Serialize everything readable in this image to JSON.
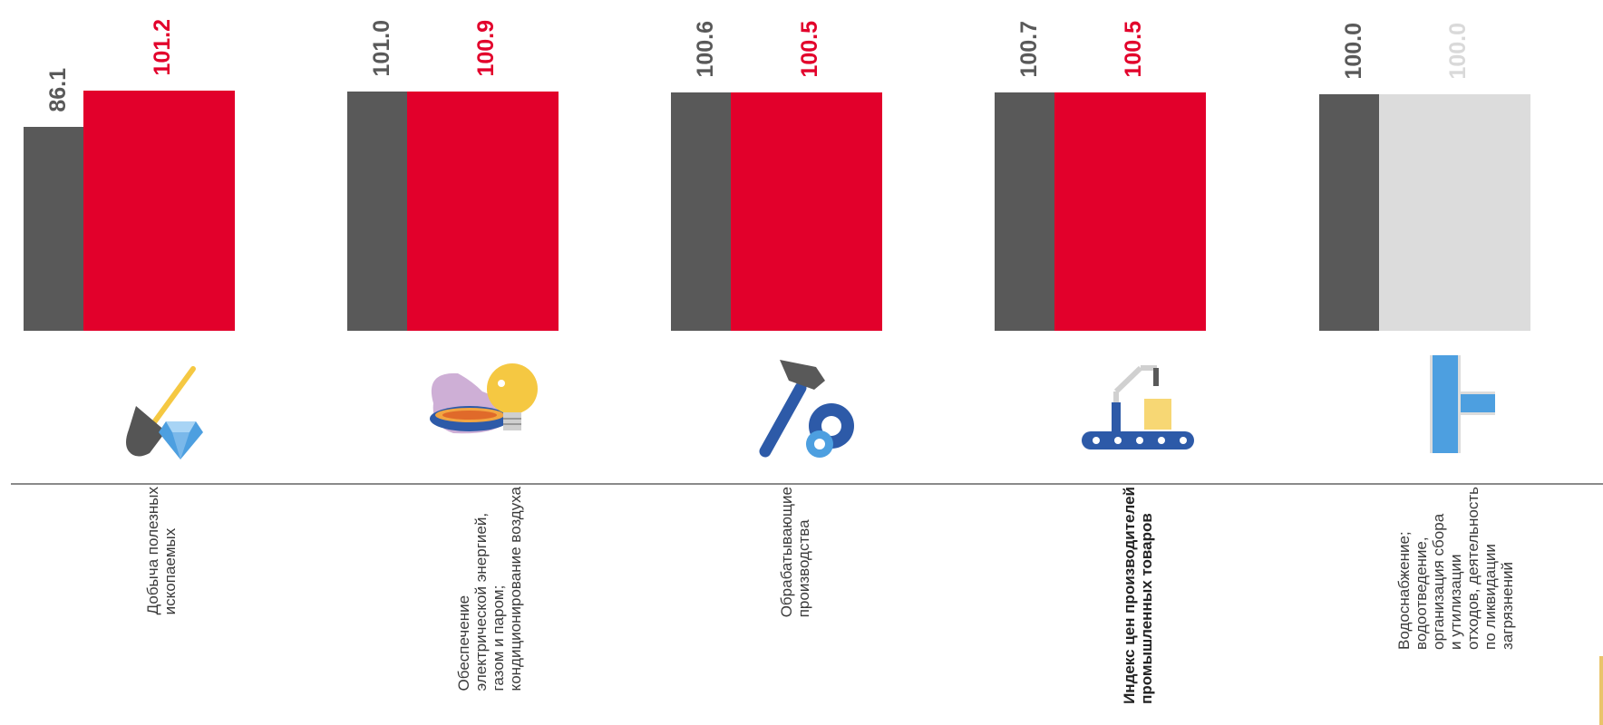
{
  "colors": {
    "prev": "#595959",
    "current": "#e2002b",
    "current_muted": "#dcdcdc",
    "label_current_muted": "#d9d9d9",
    "baseline": "#8a8a8a"
  },
  "chart_data": {
    "type": "bar",
    "series": [
      {
        "values": [
          86.1,
          101.0,
          100.6,
          100.7,
          100.0
        ]
      },
      {
        "values": [
          101.2,
          100.9,
          100.5,
          100.5,
          100.0
        ]
      }
    ],
    "value_labels": {
      "prev": [
        "86.1",
        "101.0",
        "100.6",
        "100.7",
        "100.0"
      ],
      "current": [
        "101.2",
        "100.9",
        "100.5",
        "100.5",
        "100.0"
      ]
    },
    "categories": [
      "Добыча полезных ископаемых",
      "Обеспечение электрической энергией, газом и паром; кондиционирование воздуха",
      "Обрабатывающие производства",
      "Индекс цен производителей промышленных товаров",
      "Водоснабжение; водоотведение, организация сбора и утилизации отходов, деятельность по ликвидации загрязнений"
    ],
    "category_label_lines": [
      [
        "Добыча полезных",
        "ископаемых"
      ],
      [
        "Обеспечение",
        "электрической энергией,",
        "газом и паром;",
        "кондиционирование воздуха"
      ],
      [
        "Обрабатывающие",
        "производства"
      ],
      [
        "Индекс цен производителей",
        "промышленных товаров"
      ],
      [
        "Водоснабжение;",
        "водоотведение,",
        "организация сбора",
        "и утилизации",
        "отходов, деятельность",
        "по ликвидации",
        "загрязнений"
      ]
    ],
    "highlighted_category_index": 3,
    "category_icons": [
      "shovel-diamond-icon",
      "gas-flame-lightbulb-icon",
      "hammer-gear-icon",
      "conveyor-robot-icon",
      "water-pipe-icon"
    ],
    "ylim": [
      0,
      102
    ],
    "grid": false,
    "legend": "none"
  }
}
